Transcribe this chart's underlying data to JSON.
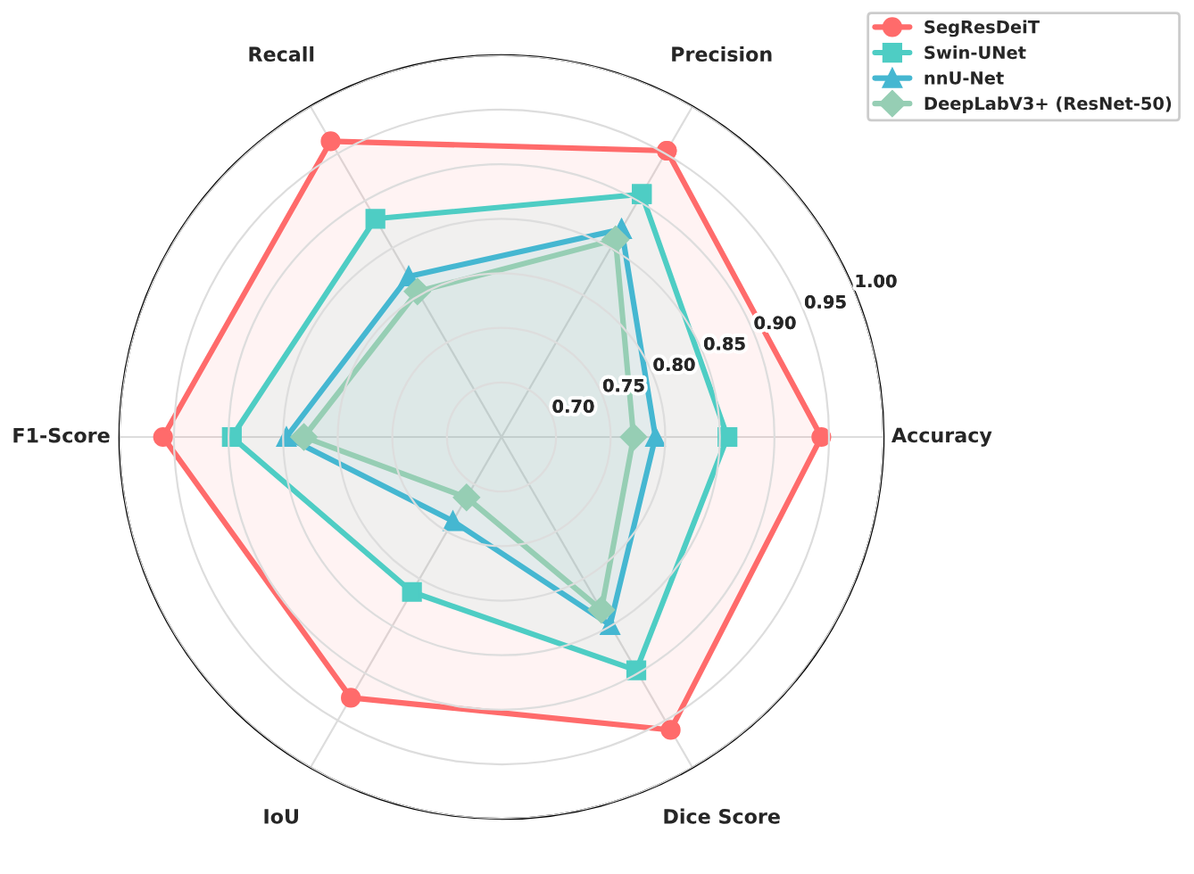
{
  "chart_data": {
    "type": "radar",
    "categories": [
      "Precision",
      "Accuracy",
      "Dice Score",
      "IoU",
      "F1-Score",
      "Recall"
    ],
    "series": [
      {
        "name": "SegResDeiT",
        "color": "#ff6b6b",
        "marker": "circle",
        "values": [
          0.953,
          0.943,
          0.96,
          0.926,
          0.96,
          0.963
        ]
      },
      {
        "name": "Swin-UNet",
        "color": "#4ecdc4",
        "marker": "square",
        "values": [
          0.907,
          0.857,
          0.897,
          0.814,
          0.897,
          0.881
        ]
      },
      {
        "name": "nnU-Net",
        "color": "#45b7d1",
        "marker": "triangle",
        "values": [
          0.87,
          0.791,
          0.849,
          0.739,
          0.847,
          0.82
        ]
      },
      {
        "name": "DeepLabV3+ (ResNet-50)",
        "color": "#96ceb4",
        "marker": "diamond",
        "values": [
          0.859,
          0.771,
          0.833,
          0.714,
          0.831,
          0.804
        ]
      }
    ],
    "ylim": [
      0.65,
      1.0
    ],
    "yticks": [
      {
        "value": 0.7,
        "label": "0.70"
      },
      0.75,
      {
        "value": 0.8,
        "label": "0.80"
      },
      0.85,
      {
        "value": 0.9,
        "label": "0.90"
      },
      0.95,
      {
        "value": 1.0,
        "label": "1.00"
      }
    ],
    "grid": true,
    "legend": "top right"
  }
}
